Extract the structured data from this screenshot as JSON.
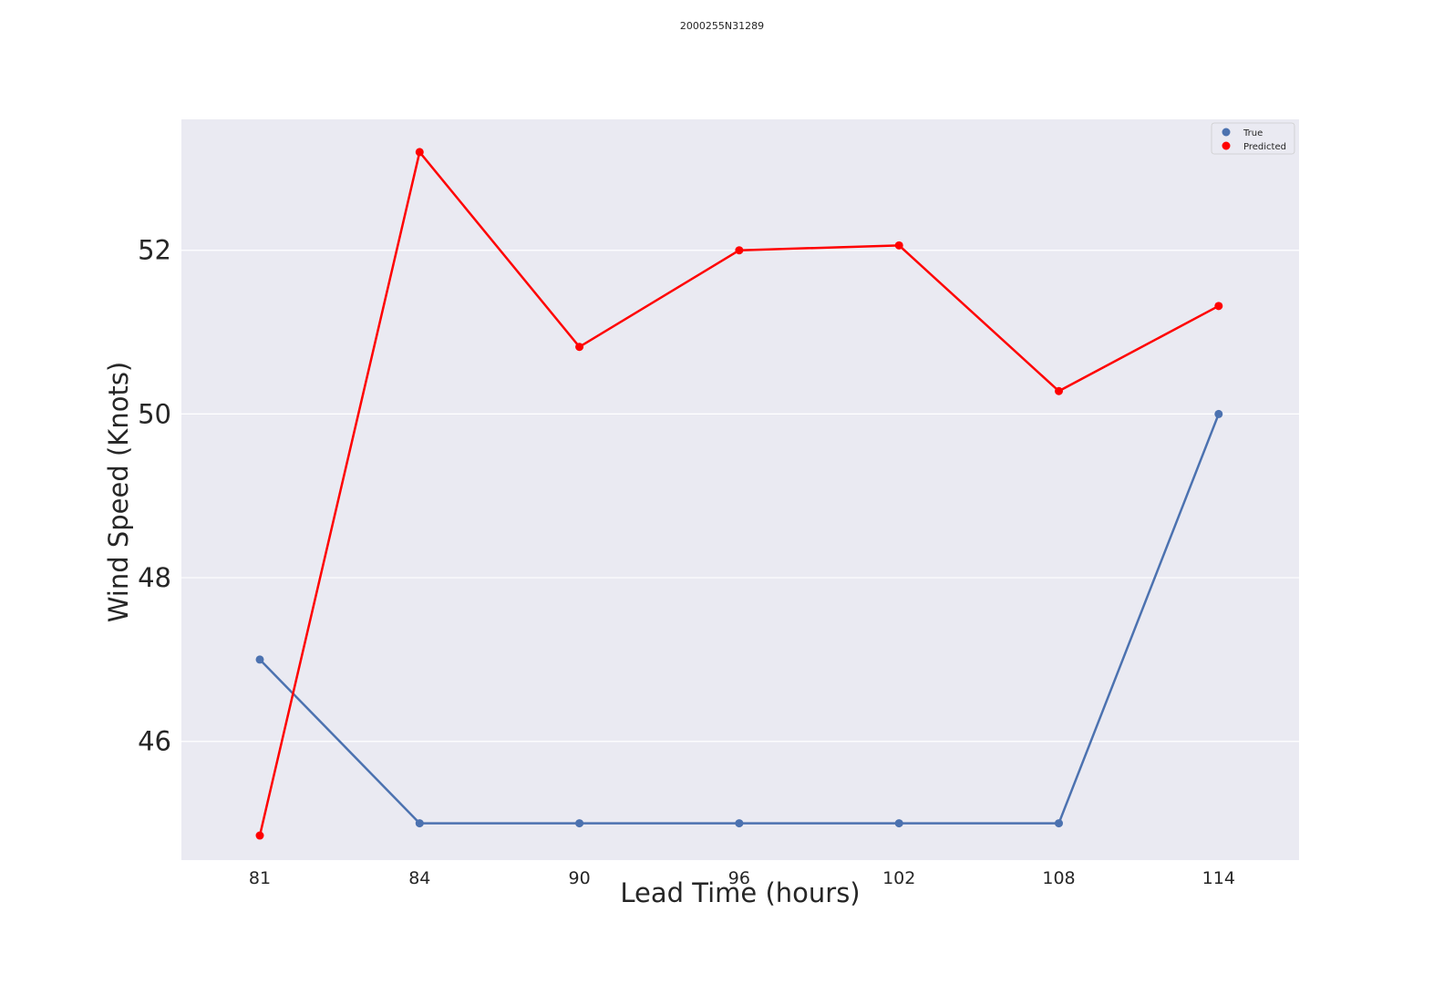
{
  "chart_data": {
    "type": "line",
    "title": "2000255N31289",
    "xlabel": "Lead Time (hours)",
    "ylabel": "Wind Speed (Knots)",
    "categories": [
      "81",
      "84",
      "90",
      "96",
      "102",
      "108",
      "114"
    ],
    "y_ticks": [
      "46",
      "48",
      "50",
      "52"
    ],
    "ylim": [
      44.55,
      53.6
    ],
    "grid": true,
    "legend_position": "top-right",
    "series": [
      {
        "name": "True",
        "color": "#4c72b0",
        "values": [
          47,
          45,
          45,
          45,
          45,
          45,
          50
        ]
      },
      {
        "name": "Predicted",
        "color": "#ff0000",
        "values": [
          44.85,
          53.2,
          50.82,
          52.0,
          52.06,
          50.28,
          51.32
        ]
      }
    ],
    "plot_background": "#eaeaf2"
  }
}
